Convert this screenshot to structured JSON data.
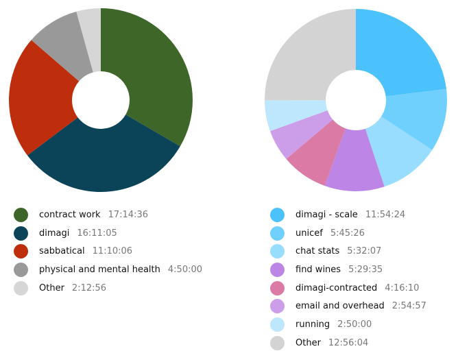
{
  "chart_data": [
    {
      "type": "pie",
      "variant": "donut",
      "units": "h:mm:ss",
      "slices": [
        {
          "label": "contract work",
          "duration": "17:14:36",
          "color": "#3d6628"
        },
        {
          "label": "dimagi",
          "duration": "16:11:05",
          "color": "#0b4458"
        },
        {
          "label": "sabbatical",
          "duration": "11:10:06",
          "color": "#bf2e0c"
        },
        {
          "label": "physical and mental health",
          "duration": "4:50:00",
          "color": "#999999"
        },
        {
          "label": "Other",
          "duration": "2:12:56",
          "color": "#d6d6d6"
        }
      ],
      "legend_position": "bottom"
    },
    {
      "type": "pie",
      "variant": "donut",
      "units": "h:mm:ss",
      "slices": [
        {
          "label": "dimagi - scale",
          "duration": "11:54:24",
          "color": "#4cc2fd"
        },
        {
          "label": "unicef",
          "duration": "5:45:26",
          "color": "#6fcffd"
        },
        {
          "label": "chat stats",
          "duration": "5:32:07",
          "color": "#98ddfe"
        },
        {
          "label": "find wines",
          "duration": "5:29:35",
          "color": "#bd86e6"
        },
        {
          "label": "dimagi-contracted",
          "duration": "4:16:10",
          "color": "#dc7aa6"
        },
        {
          "label": "email and overhead",
          "duration": "2:54:57",
          "color": "#cc9eea"
        },
        {
          "label": "running",
          "duration": "2:50:00",
          "color": "#bde7fd"
        },
        {
          "label": "Other",
          "duration": "12:56:04",
          "color": "#d3d3d3"
        }
      ],
      "legend_position": "bottom"
    }
  ]
}
